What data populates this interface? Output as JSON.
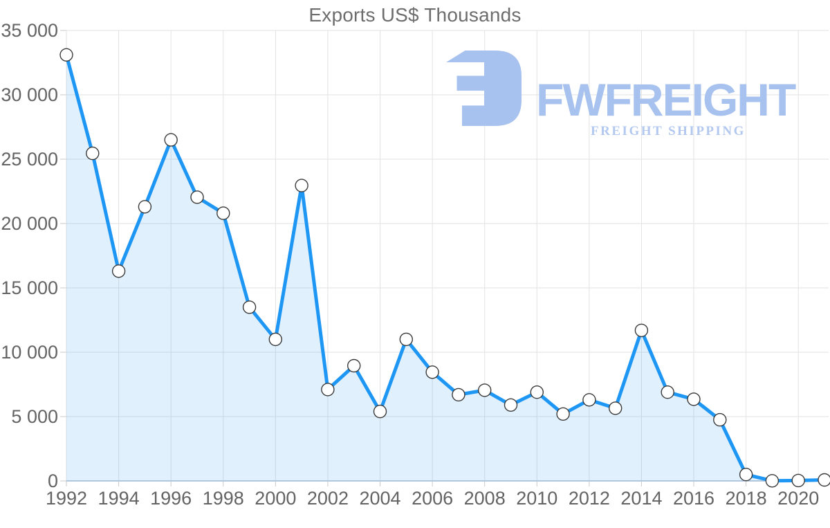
{
  "chart_data": {
    "type": "area",
    "title": "Exports US$ Thousands",
    "xlabel": "",
    "ylabel": "",
    "legend": "none",
    "grid": true,
    "x": [
      1992,
      1993,
      1994,
      1995,
      1996,
      1997,
      1998,
      1999,
      2000,
      2001,
      2002,
      2003,
      2004,
      2005,
      2006,
      2007,
      2008,
      2009,
      2010,
      2011,
      2012,
      2013,
      2014,
      2015,
      2016,
      2017,
      2018,
      2019,
      2020,
      2021
    ],
    "values": [
      33100,
      25450,
      16300,
      21300,
      26500,
      22050,
      20800,
      13500,
      11000,
      22950,
      7100,
      8950,
      5400,
      11000,
      8450,
      6700,
      7050,
      5900,
      6900,
      5200,
      6300,
      5650,
      11700,
      6900,
      6350,
      4750,
      500,
      10,
      30,
      80
    ],
    "ylim": [
      0,
      35000
    ],
    "xlim": [
      1992,
      2021
    ],
    "y_ticks": [
      {
        "value": 0,
        "label": "0"
      },
      {
        "value": 5000,
        "label": "5 000"
      },
      {
        "value": 10000,
        "label": "10 000"
      },
      {
        "value": 15000,
        "label": "15 000"
      },
      {
        "value": 20000,
        "label": "20 000"
      },
      {
        "value": 25000,
        "label": "25 000"
      },
      {
        "value": 30000,
        "label": "30 000"
      },
      {
        "value": 35000,
        "label": "35 000"
      }
    ],
    "x_ticks": [
      {
        "value": 1992,
        "label": "1992"
      },
      {
        "value": 1994,
        "label": "1994"
      },
      {
        "value": 1996,
        "label": "1996"
      },
      {
        "value": 1998,
        "label": "1998"
      },
      {
        "value": 2000,
        "label": "2000"
      },
      {
        "value": 2002,
        "label": "2002"
      },
      {
        "value": 2004,
        "label": "2004"
      },
      {
        "value": 2006,
        "label": "2006"
      },
      {
        "value": 2008,
        "label": "2008"
      },
      {
        "value": 2010,
        "label": "2010"
      },
      {
        "value": 2012,
        "label": "2012"
      },
      {
        "value": 2014,
        "label": "2014"
      },
      {
        "value": 2016,
        "label": "2016"
      },
      {
        "value": 2018,
        "label": "2018"
      },
      {
        "value": 2020,
        "label": "2020"
      }
    ],
    "colors": {
      "line": "#1e96f3",
      "fill": "#2196f3",
      "fill_opacity": 0.14,
      "marker_fill": "#ffffff",
      "marker_stroke": "#3a3a3a",
      "grid": "#e2e2e2",
      "axis_line": "#bccbdc",
      "tick": "#c9c9c9",
      "axis_text": "#636363",
      "title_text": "#6d6d6d"
    }
  },
  "watermark": {
    "brand": "FWFREIGHT",
    "tagline": "FREIGHT SHIPPING",
    "brand_color": "#a7c2ee",
    "tagline_color": "#b3c8ef",
    "logo_color": "#a7c2ee"
  }
}
